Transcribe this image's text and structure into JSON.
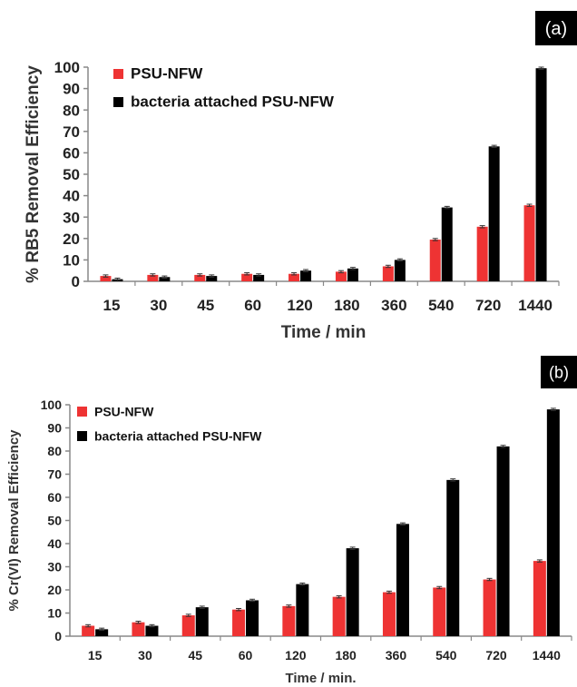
{
  "chart_data": [
    {
      "type": "bar",
      "panel_label": "(a)",
      "categories": [
        "15",
        "30",
        "45",
        "60",
        "120",
        "180",
        "360",
        "540",
        "720",
        "1440"
      ],
      "series": [
        {
          "name": "PSU-NFW",
          "color": "#ee3333",
          "values": [
            2.5,
            3,
            3,
            3.5,
            3.5,
            4.5,
            7,
            19.5,
            25.5,
            35.5
          ]
        },
        {
          "name": "bacteria attached PSU-NFW",
          "color": "#000000",
          "values": [
            1,
            2,
            2.5,
            3,
            5,
            6,
            10,
            34.5,
            63,
            99.5
          ]
        }
      ],
      "xlabel": "Time / min",
      "ylabel": "% RB5 Removal Efficiency",
      "ylim": [
        0,
        100
      ],
      "yticks": [
        "0",
        "10",
        "20",
        "30",
        "40",
        "50",
        "60",
        "70",
        "80",
        "90",
        "100"
      ],
      "grid": false,
      "legend": "top-left"
    },
    {
      "type": "bar",
      "panel_label": "(b)",
      "categories": [
        "15",
        "30",
        "45",
        "60",
        "120",
        "180",
        "360",
        "540",
        "720",
        "1440"
      ],
      "series": [
        {
          "name": "PSU-NFW",
          "color": "#ee3333",
          "values": [
            4.5,
            6,
            9,
            11.5,
            13,
            17,
            19,
            21,
            24.5,
            32.5
          ]
        },
        {
          "name": "bacteria attached PSU-NFW",
          "color": "#000000",
          "values": [
            3,
            4.5,
            12.5,
            15.5,
            22.5,
            38,
            48.5,
            67.5,
            82,
            98
          ]
        }
      ],
      "xlabel": "Time / min.",
      "ylabel": "% Cr(VI) Removal Efficiency",
      "ylim": [
        0,
        100
      ],
      "yticks": [
        "0",
        "10",
        "20",
        "30",
        "40",
        "50",
        "60",
        "70",
        "80",
        "90",
        "100"
      ],
      "grid": false,
      "legend": "top-left"
    }
  ]
}
